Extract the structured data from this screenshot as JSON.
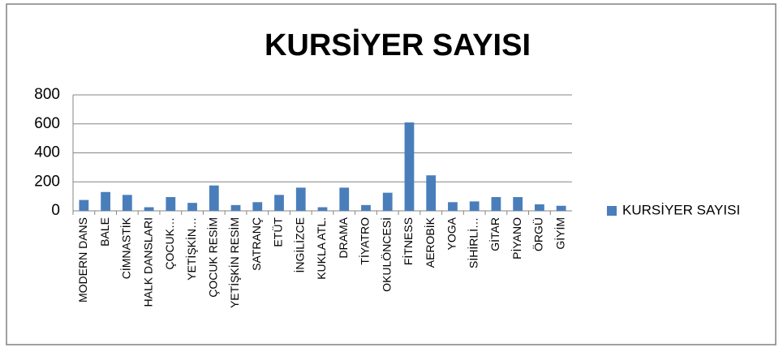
{
  "chart_data": {
    "type": "bar",
    "title": "KURSİYER SAYISI",
    "categories": [
      "MODERN DANS",
      "BALE",
      "CİMNASTİK",
      "HALK DANSLARI",
      "ÇOCUK…",
      "YETİŞKİN…",
      "ÇOCUK RESİM",
      "YETİŞKİN RESİM",
      "SATRANÇ",
      "ETÜT",
      "İNGİLİZCE",
      "KUKLA ATL.",
      "DRAMA",
      "TİYATRO",
      "OKULÖNCESİ",
      "FİTNESS",
      "AEROBİK",
      "YOGA",
      "SİHİRLİ…",
      "GİTAR",
      "PİYANO",
      "ÖRGÜ",
      "GİYİM"
    ],
    "series": [
      {
        "name": "KURSİYER SAYISI",
        "color": "#4a7ebb",
        "values": [
          75,
          130,
          110,
          25,
          95,
          55,
          175,
          40,
          60,
          110,
          160,
          25,
          160,
          40,
          125,
          610,
          245,
          60,
          65,
          95,
          95,
          45,
          35
        ]
      }
    ],
    "ylim": [
      0,
      800
    ],
    "yticks": [
      0,
      200,
      400,
      600,
      800
    ],
    "grid": true,
    "legend": "right"
  }
}
